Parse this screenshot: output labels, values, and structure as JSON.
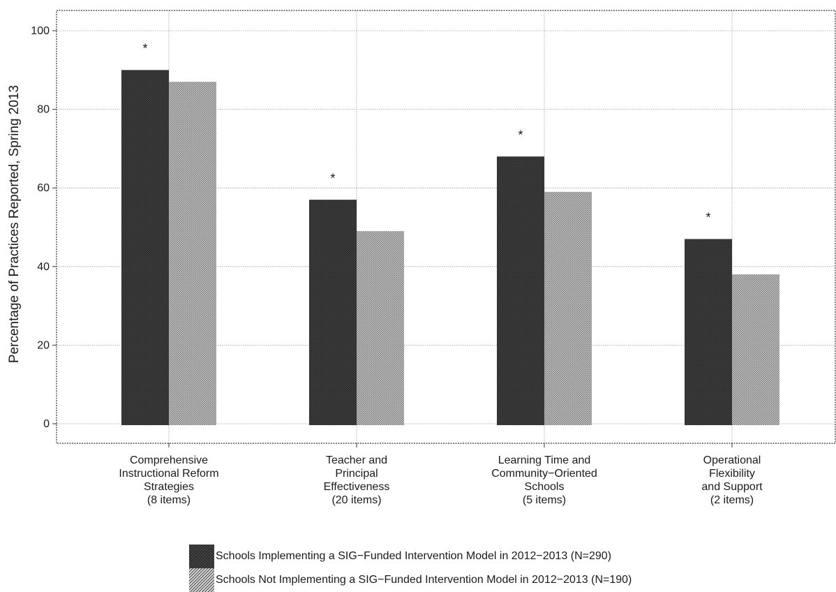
{
  "colors": {
    "implementing": "#4a4a4a",
    "not_implementing": "#9a9a9a",
    "grid": "#9a9a9a",
    "text": "#1a1a1a"
  },
  "chart_data": {
    "type": "bar",
    "title": "",
    "xlabel": "",
    "ylabel": "Percentage of Practices Reported, Spring 2013",
    "ylim": [
      0,
      102
    ],
    "yticks": [
      0,
      20,
      40,
      60,
      80,
      100
    ],
    "ytick_labels": [
      "0",
      "20",
      "40",
      "60",
      "80",
      "100"
    ],
    "grid": true,
    "legend_position": "bottom",
    "categories": [
      [
        "Comprehensive",
        "Instructional Reform",
        "Strategies",
        "(8 items)"
      ],
      [
        "Teacher and",
        "Principal",
        "Effectiveness",
        "(20 items)"
      ],
      [
        "Learning Time and",
        "Community−Oriented",
        "Schools",
        "(5 items)"
      ],
      [
        "Operational",
        "Flexibility",
        "and Support",
        "(2 items)"
      ]
    ],
    "series": [
      {
        "name": "Schools Implementing a SIG−Funded Intervention Model in 2012−2013 (N=290)",
        "values": [
          90,
          57,
          68,
          47
        ]
      },
      {
        "name": "Schools Not Implementing a SIG−Funded Intervention Model in 2012−2013 (N=190)",
        "values": [
          87,
          49,
          59,
          38
        ]
      }
    ],
    "annotations": [
      {
        "category_index": 0,
        "text": "*",
        "y": 96
      },
      {
        "category_index": 1,
        "text": "*",
        "y": 63
      },
      {
        "category_index": 2,
        "text": "*",
        "y": 74
      },
      {
        "category_index": 3,
        "text": "*",
        "y": 53
      }
    ]
  }
}
